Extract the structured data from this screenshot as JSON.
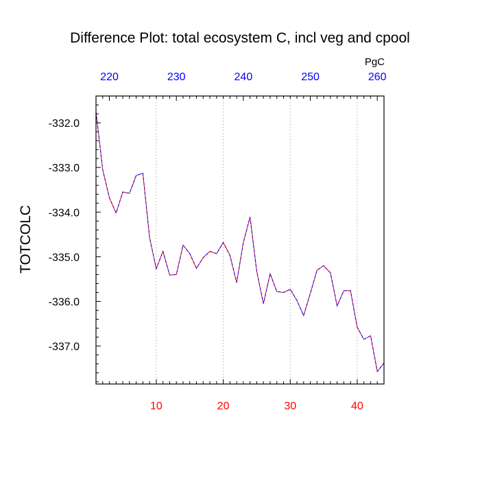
{
  "chart_data": {
    "type": "line",
    "title": "Difference Plot: total ecosystem C, incl veg and cpool",
    "ylabel": "TOTCOLC",
    "units_label": "PgC",
    "xlim": [
      1,
      44
    ],
    "ylim": [
      -337.85,
      -331.4
    ],
    "x_ticks": [
      10,
      20,
      30,
      40
    ],
    "y_ticks": [
      -332.0,
      -333.0,
      -334.0,
      -335.0,
      -336.0,
      -337.0
    ],
    "y_tick_labels": [
      "-332.0",
      "-333.0",
      "-334.0",
      "-335.0",
      "-336.0",
      "-337.0"
    ],
    "top_axis": {
      "ticks": [
        220,
        230,
        240,
        250,
        260
      ],
      "xlim": [
        218.0,
        261.0
      ],
      "color": "#0000ff"
    },
    "bottom_tick_color": "#ff0000",
    "grid": "vertical-dotted",
    "series": [
      {
        "color": "#ff0000",
        "overlay_color": "#0000ff",
        "style": "dashed",
        "x": [
          1,
          2,
          3,
          4,
          5,
          6,
          7,
          8,
          9,
          10,
          11,
          12,
          13,
          14,
          15,
          16,
          17,
          18,
          19,
          20,
          21,
          22,
          23,
          24,
          25,
          26,
          27,
          28,
          29,
          30,
          31,
          32,
          33,
          34,
          35,
          36,
          37,
          38,
          39,
          40,
          41,
          42,
          43,
          44
        ],
        "values": [
          -331.75,
          -333.05,
          -333.68,
          -334.02,
          -333.55,
          -333.58,
          -333.18,
          -333.13,
          -334.57,
          -335.27,
          -334.88,
          -335.41,
          -335.4,
          -334.74,
          -334.93,
          -335.26,
          -335.02,
          -334.88,
          -334.93,
          -334.68,
          -334.97,
          -335.58,
          -334.68,
          -334.11,
          -335.33,
          -336.05,
          -335.38,
          -335.78,
          -335.8,
          -335.73,
          -335.98,
          -336.32,
          -335.82,
          -335.3,
          -335.2,
          -335.36,
          -336.1,
          -335.76,
          -335.76,
          -336.58,
          -336.85,
          -336.77,
          -337.57,
          -337.38
        ]
      }
    ]
  }
}
